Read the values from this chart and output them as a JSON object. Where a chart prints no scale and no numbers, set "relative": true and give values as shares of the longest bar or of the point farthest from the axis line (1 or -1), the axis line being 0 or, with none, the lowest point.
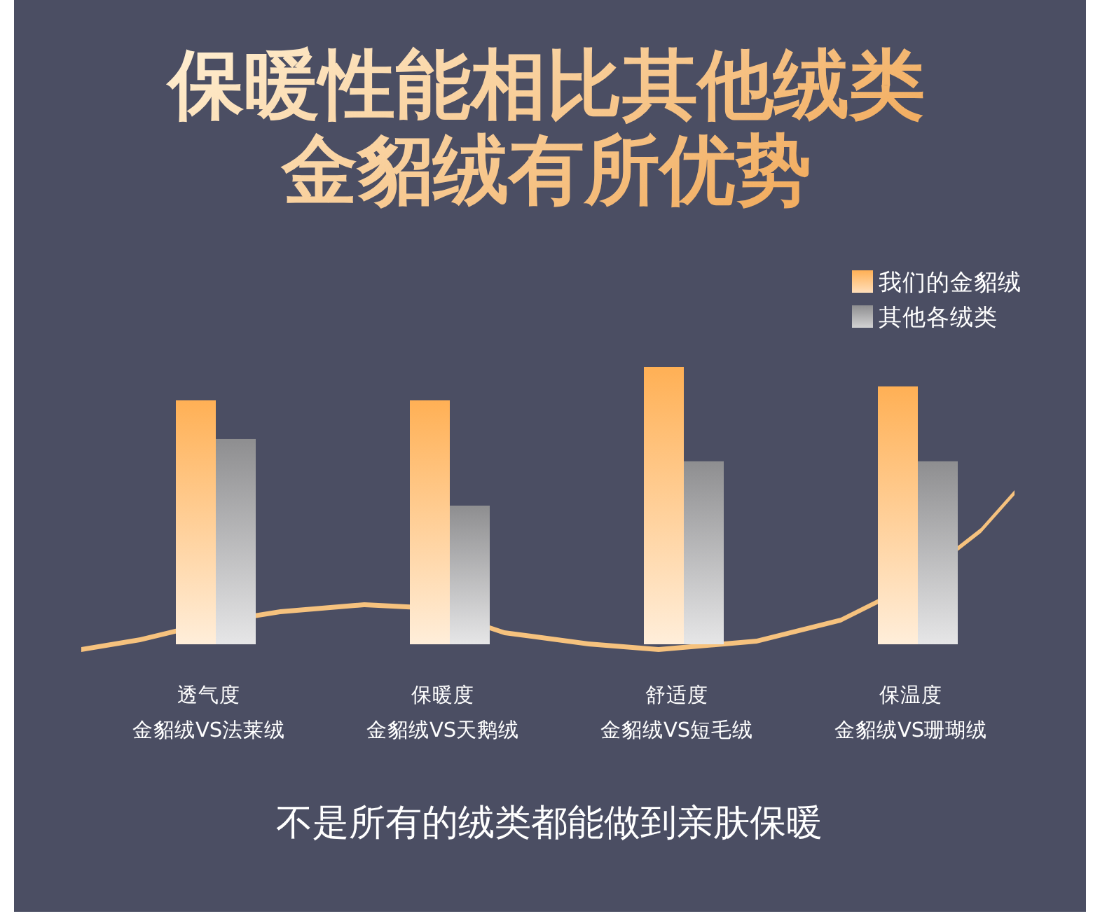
{
  "chart_data": {
    "type": "bar",
    "title": "保暖性能相比其他绒类金貂绒有所优势",
    "categories": [
      "透气度金貂绒VS法莱绒",
      "保暖度金貂绒VS天鹅绒",
      "舒适度金貂绒VS短毛绒",
      "保温度金貂绒VS珊瑚绒"
    ],
    "series": [
      {
        "name": "我们的金貂绒",
        "color": "#ffb055",
        "values": [
          0.88,
          0.88,
          1,
          0.93
        ]
      },
      {
        "name": "其他各绒类",
        "color": "#8e8e90",
        "values": [
          0.74,
          0.5,
          0.66,
          0.66
        ]
      }
    ],
    "relative": true,
    "legend": "top right",
    "annotations": [
      "不是所有的绒类都能做到亲肤保暖"
    ]
  }
}
